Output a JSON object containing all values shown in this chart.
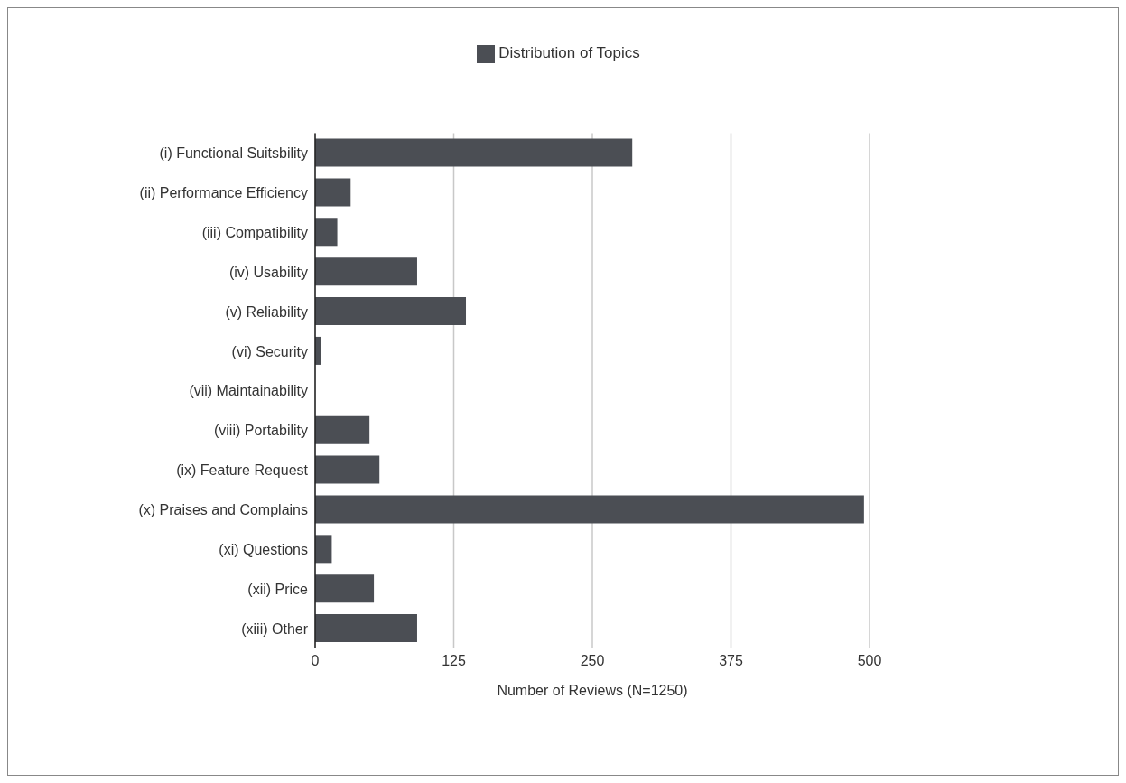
{
  "chart_data": {
    "type": "bar",
    "orientation": "horizontal",
    "xlabel": "Number of Reviews (N=1250)",
    "categories": [
      "(i) Functional Suitsbility",
      "(ii) Performance Efficiency",
      "(iii) Compatibility",
      "(iv) Usability",
      "(v) Reliability",
      "(vi) Security",
      "(vii) Maintainability",
      "(viii) Portability",
      "(ix) Feature Request",
      "(x) Praises and Complains",
      "(xi) Questions",
      "(xii) Price",
      "(xiii) Other"
    ],
    "series": [
      {
        "name": "Distribution of Topics",
        "color": "#4b4e54",
        "values": [
          286,
          32,
          20,
          92,
          136,
          5,
          0,
          49,
          58,
          495,
          15,
          53,
          92
        ]
      }
    ],
    "xlim": [
      0,
      500
    ],
    "xticks": [
      0,
      125,
      250,
      375,
      500
    ],
    "grid": "x",
    "legend": "top"
  }
}
